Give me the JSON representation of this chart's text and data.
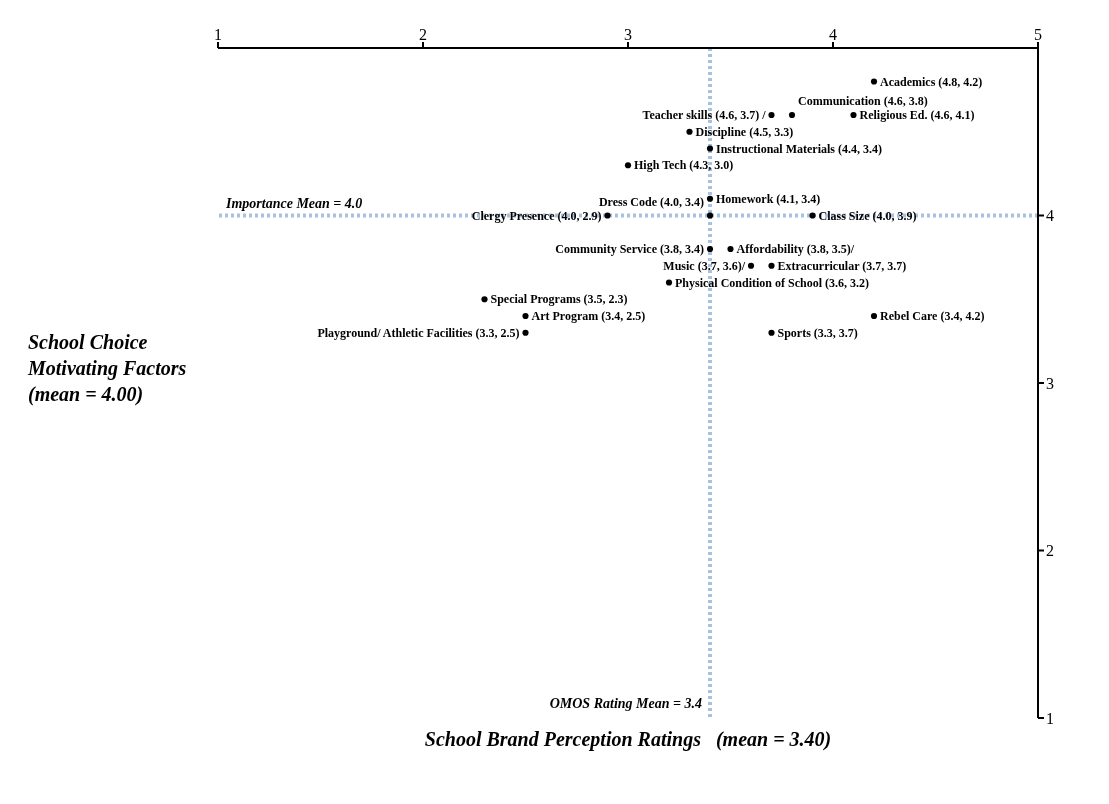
{
  "chart_data": {
    "type": "scatter",
    "xlabel": "School Brand Perception Ratings   (mean = 3.40)",
    "ylabel": "School Choice Motivating Factors (mean = 4.00)",
    "x": [
      4.2,
      3.7,
      4.1,
      3.8,
      3.3,
      3.4,
      3.0,
      3.4,
      2.9,
      3.4,
      3.9,
      3.5,
      3.4,
      3.6,
      3.2,
      3.7,
      2.3,
      2.5,
      4.2,
      2.5,
      3.7
    ],
    "values": [
      4.8,
      4.6,
      4.6,
      4.6,
      4.5,
      4.4,
      4.3,
      4.1,
      4.0,
      4.0,
      4.0,
      3.8,
      3.8,
      3.7,
      3.6,
      3.7,
      3.5,
      3.4,
      3.4,
      3.3,
      3.3
    ],
    "value_labels": [
      "Academics (4.8, 4.2)",
      "Teacher skills (4.6, 3.7) /",
      "Religious Ed. (4.6, 4.1)",
      "Communication (4.6, 3.8)",
      "Discipline (4.5, 3.3)",
      "Instructional Materials (4.4, 3.4)",
      "High Tech (4.3, 3.0)",
      "Homework (4.1, 3.4)",
      "Clergy Presence (4.0, 2.9)",
      "Dress Code (4.0, 3.4)",
      "Class Size (4.0, 3.9)",
      "Affordability (3.8, 3.5)/",
      "Community Service (3.8, 3.4)",
      "Music (3.7, 3.6)/",
      "Physical Condition of School (3.6, 3.2)",
      "Extracurricular (3.7, 3.7)",
      "Special Programs (3.5, 2.3)",
      "Art Program (3.4, 2.5)",
      "Rebel Care (3.4, 4.2)",
      "Playground/ Athletic Facilities (3.3, 2.5)",
      "Sports (3.3, 3.7)"
    ],
    "color": "#000000",
    "marker": "circle",
    "xlim": [
      1,
      5
    ],
    "xticks": [
      1,
      2,
      3,
      4,
      5
    ],
    "ylim": [
      1,
      5
    ],
    "yticks": [
      1,
      2,
      3,
      4
    ],
    "ref_lines": [
      {
        "axis": "y",
        "value": 4.0,
        "label": "Importance Mean = 4.0",
        "color": "#a9c1e0",
        "line_style": "dotted"
      },
      {
        "axis": "x",
        "value": 3.4,
        "label": "OMOS Rating Mean = 3.4",
        "color": "#a9c1e0",
        "line_style": "dotted"
      }
    ],
    "grid": false
  }
}
